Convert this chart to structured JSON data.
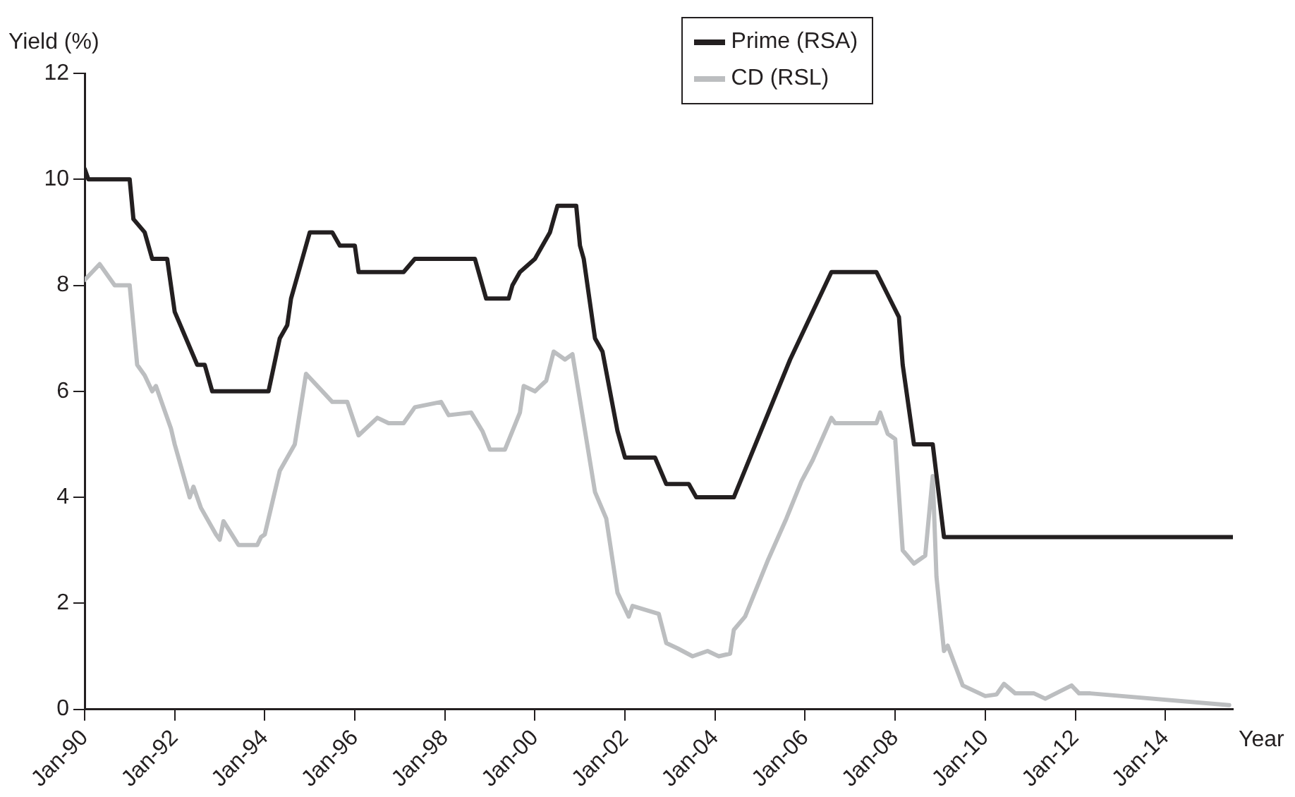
{
  "chart_data": {
    "type": "line",
    "xlabel": "Year",
    "ylabel": "Yield (%)",
    "xlim": [
      "1990-01",
      "2015-07"
    ],
    "xticks": [
      {
        "value": "1990-01",
        "label": "Jan-90"
      },
      {
        "value": "1992-01",
        "label": "Jan-92"
      },
      {
        "value": "1994-01",
        "label": "Jan-94"
      },
      {
        "value": "1996-01",
        "label": "Jan-96"
      },
      {
        "value": "1998-01",
        "label": "Jan-98"
      },
      {
        "value": "2000-01",
        "label": "Jan-00"
      },
      {
        "value": "2002-01",
        "label": "Jan-02"
      },
      {
        "value": "2004-01",
        "label": "Jan-04"
      },
      {
        "value": "2006-01",
        "label": "Jan-06"
      },
      {
        "value": "2008-01",
        "label": "Jan-08"
      },
      {
        "value": "2010-01",
        "label": "Jan-10"
      },
      {
        "value": "2012-01",
        "label": "Jan-12"
      },
      {
        "value": "2014-01",
        "label": "Jan-14"
      }
    ],
    "ylim": [
      0,
      12
    ],
    "yticks": [
      0,
      2,
      4,
      6,
      8,
      10,
      12
    ],
    "grid": false,
    "legend": "top right",
    "marker": "none",
    "line_style": "solid",
    "series": [
      {
        "name": "Prime (RSA)",
        "color": "#231f20",
        "x": [
          "1990-01",
          "1990-02",
          "1991-01",
          "1991-02",
          "1991-05",
          "1991-07",
          "1991-11",
          "1992-01",
          "1992-07",
          "1992-09",
          "1992-11",
          "1994-02",
          "1994-05",
          "1994-07",
          "1994-08",
          "1994-11",
          "1995-01",
          "1995-07",
          "1995-09",
          "1996-01",
          "1996-02",
          "1997-02",
          "1997-05",
          "1998-09",
          "1998-12",
          "1999-06",
          "1999-07",
          "1999-09",
          "2000-01",
          "2000-05",
          "2000-07",
          "2000-12",
          "2001-01",
          "2001-02",
          "2001-05",
          "2001-07",
          "2001-11",
          "2002-01",
          "2002-09",
          "2002-12",
          "2003-06",
          "2003-08",
          "2004-06",
          "2005-09",
          "2006-08",
          "2007-08",
          "2008-02",
          "2008-03",
          "2008-06",
          "2008-11",
          "2009-02",
          "2015-07"
        ],
        "values": [
          10.2,
          10,
          10,
          9.25,
          9,
          8.5,
          8.5,
          7.5,
          6.5,
          6.5,
          6,
          6,
          7,
          7.25,
          7.75,
          8.5,
          9,
          9,
          8.75,
          8.75,
          8.25,
          8.25,
          8.5,
          8.5,
          7.75,
          7.75,
          8,
          8.25,
          8.5,
          9,
          9.5,
          9.5,
          8.75,
          8.5,
          7,
          6.75,
          5.25,
          4.75,
          4.75,
          4.25,
          4.25,
          4,
          4,
          6.6,
          8.25,
          8.25,
          7.4,
          6.5,
          5,
          5,
          3.25,
          3.25
        ]
      },
      {
        "name": "CD (RSL)",
        "color": "#bcbec0",
        "x": [
          "1990-01",
          "1990-05",
          "1990-09",
          "1991-01",
          "1991-03",
          "1991-05",
          "1991-07",
          "1991-08",
          "1991-12",
          "1992-01",
          "1992-05",
          "1992-06",
          "1992-08",
          "1992-12",
          "1993-01",
          "1993-02",
          "1993-06",
          "1993-11",
          "1993-12",
          "1994-01",
          "1994-05",
          "1994-09",
          "1994-12",
          "1995-07",
          "1995-11",
          "1996-02",
          "1996-07",
          "1996-10",
          "1997-02",
          "1997-05",
          "1997-12",
          "1998-02",
          "1998-08",
          "1998-11",
          "1999-01",
          "1999-05",
          "1999-09",
          "1999-10",
          "2000-01",
          "2000-04",
          "2000-06",
          "2000-09",
          "2000-11",
          "2001-05",
          "2001-08",
          "2001-11",
          "2002-02",
          "2002-03",
          "2002-10",
          "2002-12",
          "2003-03",
          "2003-07",
          "2003-11",
          "2004-02",
          "2004-05",
          "2004-06",
          "2004-09",
          "2005-03",
          "2005-08",
          "2005-12",
          "2006-03",
          "2006-08",
          "2006-09",
          "2007-08",
          "2007-09",
          "2007-11",
          "2008-01",
          "2008-03",
          "2008-06",
          "2008-09",
          "2008-11",
          "2008-12",
          "2009-02",
          "2009-03",
          "2009-07",
          "2010-01",
          "2010-04",
          "2010-06",
          "2010-09",
          "2011-02",
          "2011-05",
          "2011-12",
          "2012-02",
          "2012-05",
          "2015-06"
        ],
        "values": [
          8.1,
          8.4,
          8,
          8,
          6.5,
          6.3,
          6,
          6.1,
          5.3,
          5,
          4,
          4.2,
          3.8,
          3.3,
          3.2,
          3.55,
          3.1,
          3.1,
          3.25,
          3.3,
          4.5,
          5,
          6.33,
          5.8,
          5.8,
          5.17,
          5.5,
          5.4,
          5.4,
          5.7,
          5.8,
          5.55,
          5.6,
          5.25,
          4.9,
          4.9,
          5.6,
          6.1,
          6,
          6.2,
          6.75,
          6.6,
          6.7,
          4.1,
          3.6,
          2.2,
          1.75,
          1.95,
          1.8,
          1.25,
          1.15,
          1,
          1.1,
          1,
          1.05,
          1.5,
          1.75,
          2.8,
          3.6,
          4.3,
          4.7,
          5.5,
          5.4,
          5.4,
          5.6,
          5.2,
          5.1,
          3,
          2.75,
          2.9,
          4.4,
          2.5,
          1.1,
          1.2,
          0.45,
          0.25,
          0.28,
          0.48,
          0.3,
          0.3,
          0.2,
          0.45,
          0.3,
          0.3,
          0.08
        ]
      }
    ]
  }
}
